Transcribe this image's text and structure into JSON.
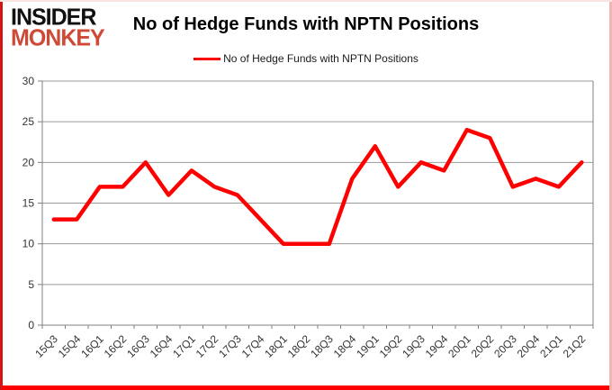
{
  "logo": {
    "line1": "INSIDER",
    "line2": "MONKEY"
  },
  "header": {
    "title": "No of Hedge Funds with NPTN Positions"
  },
  "legend": {
    "label": "No of Hedge Funds with NPTN Positions"
  },
  "colors": {
    "line": "#FF0000",
    "logo_accent": "#CE4A36",
    "grid": "#9a9a9a",
    "axis": "#808080",
    "label_text": "#333333"
  },
  "chart_data": {
    "type": "line",
    "title": "No of Hedge Funds with NPTN Positions",
    "categories": [
      "15Q3",
      "15Q4",
      "16Q1",
      "16Q2",
      "16Q3",
      "16Q4",
      "17Q1",
      "17Q2",
      "17Q3",
      "17Q4",
      "18Q1",
      "18Q2",
      "18Q3",
      "18Q4",
      "19Q1",
      "19Q2",
      "19Q3",
      "19Q4",
      "20Q1",
      "20Q2",
      "20Q3",
      "20Q4",
      "21Q1",
      "21Q2"
    ],
    "series": [
      {
        "name": "No of Hedge Funds with NPTN Positions",
        "values": [
          13,
          13,
          17,
          17,
          20,
          16,
          19,
          17,
          16,
          13,
          10,
          10,
          10,
          18,
          22,
          17,
          20,
          19,
          24,
          23,
          17,
          18,
          17,
          20
        ]
      }
    ],
    "xlabel": "",
    "ylabel": "",
    "ylim": [
      0,
      30
    ],
    "ytick_step": 5,
    "grid": true,
    "legend_position": "top"
  }
}
